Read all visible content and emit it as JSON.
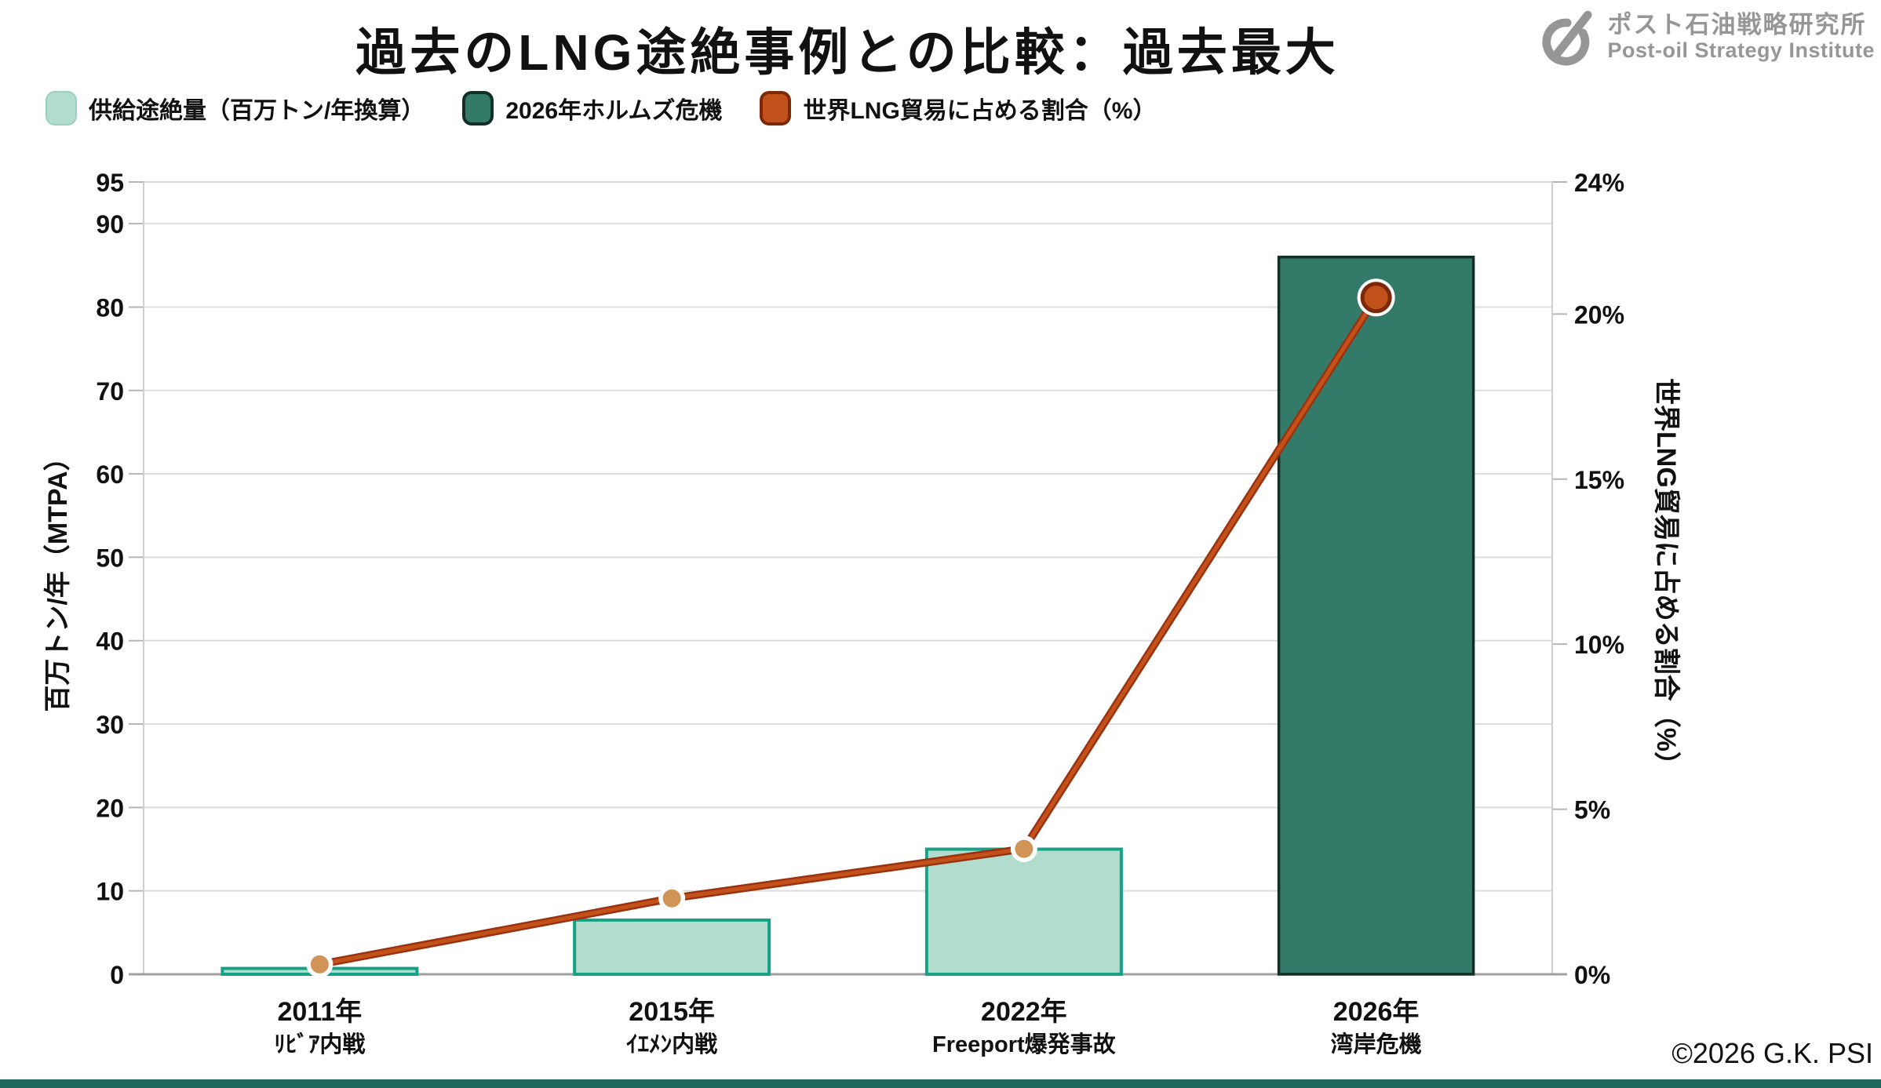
{
  "header": {
    "title": "過去のLNG途絶事例との比較：過去最大",
    "logo": {
      "name_jp": "ポスト石油戦略研究所",
      "name_en": "Post-oil Strategy Institute"
    }
  },
  "legend": [
    {
      "label": "供給途絶量（百万トン/年換算）",
      "swatch": "bar_fill"
    },
    {
      "label": "2026年ホルムズ危機",
      "swatch": "highlight_fill"
    },
    {
      "label": "世界LNG貿易に占める割合（%）",
      "swatch": "point_big_fill"
    }
  ],
  "chart_data": {
    "type": "bar+line",
    "title": "過去のLNG途絶事例との比較：過去最大",
    "categories": [
      "2011年",
      "2015年",
      "2022年",
      "2026年"
    ],
    "category_events": [
      "ﾘﾋﾞｱ内戦",
      "ｲｴﾒﾝ内戦",
      "Freeport爆発事故",
      "湾岸危機"
    ],
    "series": [
      {
        "name": "供給途絶量（百万トン/年換算）",
        "type": "bar",
        "axis": "left",
        "values": [
          0.7,
          6.5,
          15,
          86
        ]
      },
      {
        "name": "世界LNG貿易に占める割合（%）",
        "type": "line",
        "axis": "right",
        "values": [
          0.3,
          2.3,
          3.8,
          20.5
        ]
      }
    ],
    "highlight": {
      "index": 3,
      "name": "2026年ホルムズ危機"
    },
    "left_axis": {
      "title": "百万トン/年（MTPA）",
      "range": [
        0,
        95
      ],
      "ticks": [
        0,
        10,
        20,
        30,
        40,
        50,
        60,
        70,
        80,
        90,
        95
      ]
    },
    "right_axis": {
      "title": "世界LNG貿易に占める割合（%）",
      "range": [
        0,
        24
      ],
      "ticks": [
        0,
        5,
        10,
        15,
        20,
        24
      ],
      "tick_suffix": "%"
    },
    "grid": true,
    "legend_position": "top-left"
  },
  "footer": {
    "copyright": "©2026 G.K. PSI"
  },
  "colors": {
    "background": "#ffffff",
    "text": "#111111",
    "bar_fill": "#b2dccd",
    "bar_border": "#17a287",
    "highlight_fill": "#337a69",
    "highlight_border": "#122e27",
    "line": "#9a3210",
    "line_core": "#c4511a",
    "point_fill": "#d09457",
    "point_ring": "#ffffff",
    "point_big_fill": "#c0511a",
    "point_big_border": "#7d2807",
    "grid": "#dddddd",
    "spine": "#cfcfcf",
    "tick": "#b5b5b5",
    "axis_line": "#a0a0a0",
    "logo_gray": "#969696",
    "footer_bar": "#1e6b5e"
  }
}
